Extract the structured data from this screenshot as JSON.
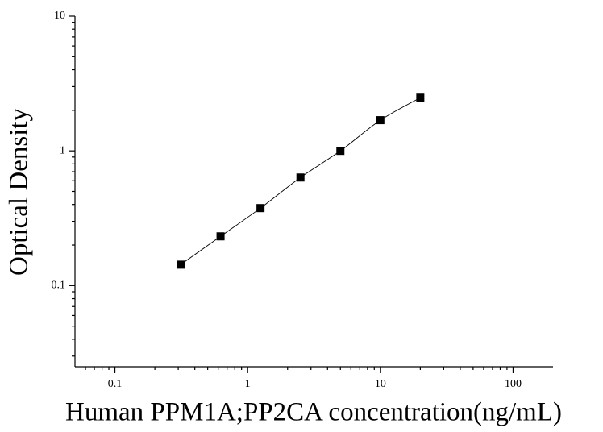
{
  "chart_data": {
    "type": "scatter",
    "x_label": "Human PPM1A;PP2CA concentration(ng/mL)",
    "y_label": "Optical Density",
    "x_scale": "log",
    "y_scale": "log",
    "xlim": [
      0.05,
      200
    ],
    "ylim": [
      0.025,
      10
    ],
    "xticks": [
      0.1,
      1,
      10,
      100
    ],
    "yticks": [
      0.1,
      1,
      10
    ],
    "minor_ticks": true,
    "fit_curve": true,
    "series": [
      {
        "color": "#000000",
        "x": [
          0.3125,
          0.625,
          1.25,
          2.5,
          5,
          10,
          20
        ],
        "values": [
          0.143,
          0.232,
          0.376,
          0.634,
          1.0,
          1.69,
          2.48
        ]
      }
    ]
  }
}
